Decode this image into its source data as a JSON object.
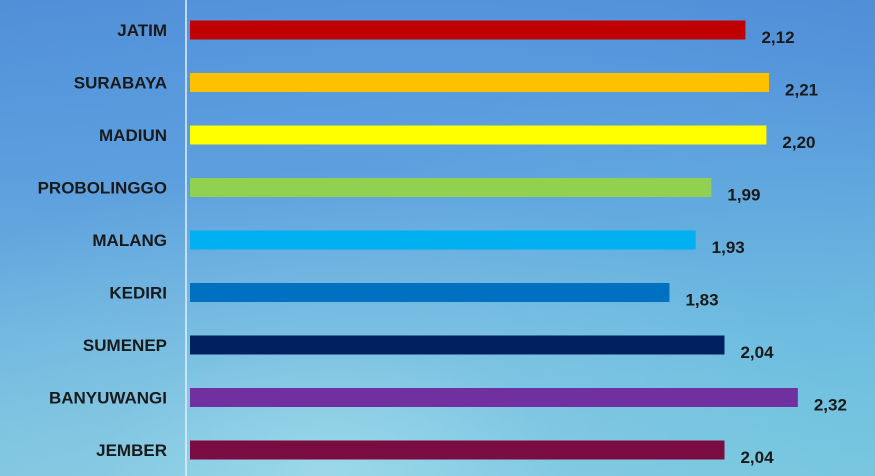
{
  "chart_data": {
    "type": "bar",
    "orientation": "horizontal",
    "categories": [
      "JATIM",
      "SURABAYA",
      "MADIUN",
      "PROBOLINGGO",
      "MALANG",
      "KEDIRI",
      "SUMENEP",
      "BANYUWANGI",
      "JEMBER"
    ],
    "values": [
      2.12,
      2.21,
      2.2,
      1.99,
      1.93,
      1.83,
      2.04,
      2.32,
      2.04
    ],
    "value_labels": [
      "2,12",
      "2,21",
      "2,20",
      "1,99",
      "1,93",
      "1,83",
      "2,04",
      "2,32",
      "2,04"
    ],
    "bar_colors": [
      "#c00000",
      "#ffc000",
      "#ffff00",
      "#92d050",
      "#00b0f0",
      "#0070c0",
      "#002060",
      "#7030a0",
      "#7b0c42"
    ],
    "title": "",
    "xlabel": "",
    "ylabel": "",
    "xlim": [
      0,
      2.6
    ],
    "grid": false,
    "legend": "none"
  }
}
